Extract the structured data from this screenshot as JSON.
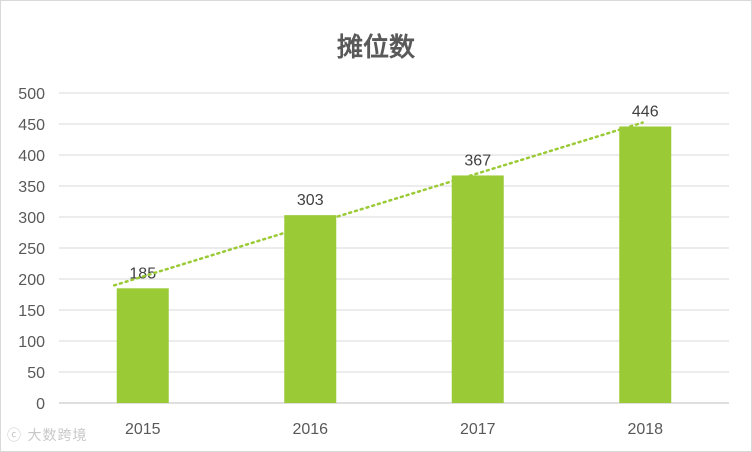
{
  "chart_data": {
    "type": "bar",
    "title": "摊位数",
    "categories": [
      "2015",
      "2016",
      "2017",
      "2018"
    ],
    "values": [
      185,
      303,
      367,
      446
    ],
    "ylim": [
      0,
      500
    ],
    "yticks": [
      0,
      50,
      100,
      150,
      200,
      250,
      300,
      350,
      400,
      450,
      500
    ],
    "grid": true,
    "trendline": "linear",
    "colors": {
      "bar": "#9ACA36",
      "trendline": "#9ACA36",
      "grid": "#d9d9d9",
      "text": "#595959"
    }
  },
  "watermark": "大数跨境"
}
